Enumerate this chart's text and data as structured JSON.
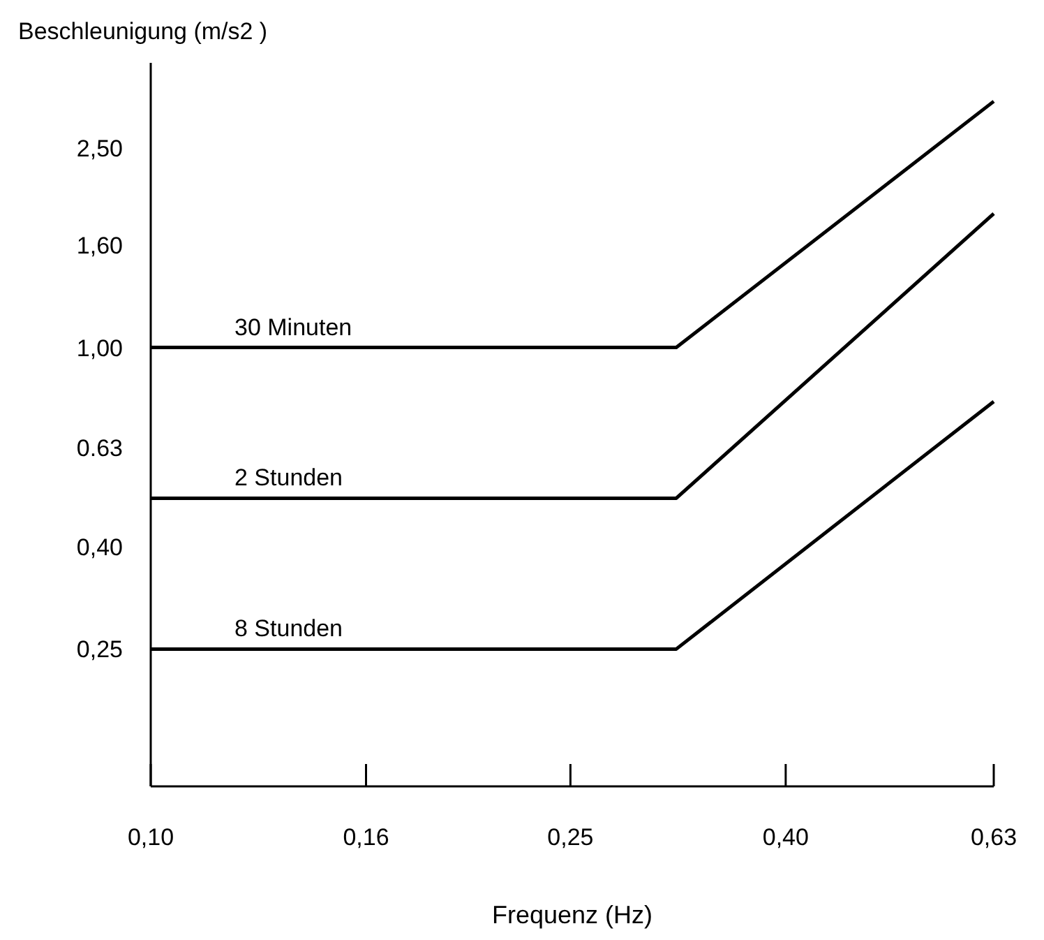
{
  "chart_data": {
    "type": "line",
    "xlabel": "Frequenz (Hz)",
    "ylabel": "Beschleunigung (m/s2 )",
    "log": "xy",
    "grid": false,
    "legend": false,
    "marker": "none",
    "line_style": "solid",
    "x": [
      0.1,
      0.315,
      0.63
    ],
    "xlim": [
      0.1,
      0.63
    ],
    "xticks": [
      {
        "value": 0.1,
        "label": "0,10"
      },
      {
        "value": 0.16,
        "label": "0,16"
      },
      {
        "value": 0.25,
        "label": "0,25"
      },
      {
        "value": 0.4,
        "label": "0,40"
      },
      {
        "value": 0.63,
        "label": "0,63"
      }
    ],
    "ylim": [
      0.133,
      3.7
    ],
    "yticks": [
      {
        "value": 0.25,
        "label": "0,25"
      },
      {
        "value": 0.4,
        "label": "0,40"
      },
      {
        "value": 0.63,
        "label": "0.63"
      },
      {
        "value": 1,
        "label": "1,00"
      },
      {
        "value": 1.6,
        "label": "1,60"
      },
      {
        "value": 2.5,
        "label": "2,50"
      }
    ],
    "series": [
      {
        "name": "30 Minuten",
        "color": "#000000",
        "values": [
          1.0,
          1.0,
          3.1
        ]
      },
      {
        "name": "2 Stunden",
        "color": "#000000",
        "values": [
          0.5,
          0.5,
          1.85
        ]
      },
      {
        "name": "8 Stunden",
        "color": "#000000",
        "values": [
          0.25,
          0.25,
          0.78
        ]
      }
    ]
  }
}
